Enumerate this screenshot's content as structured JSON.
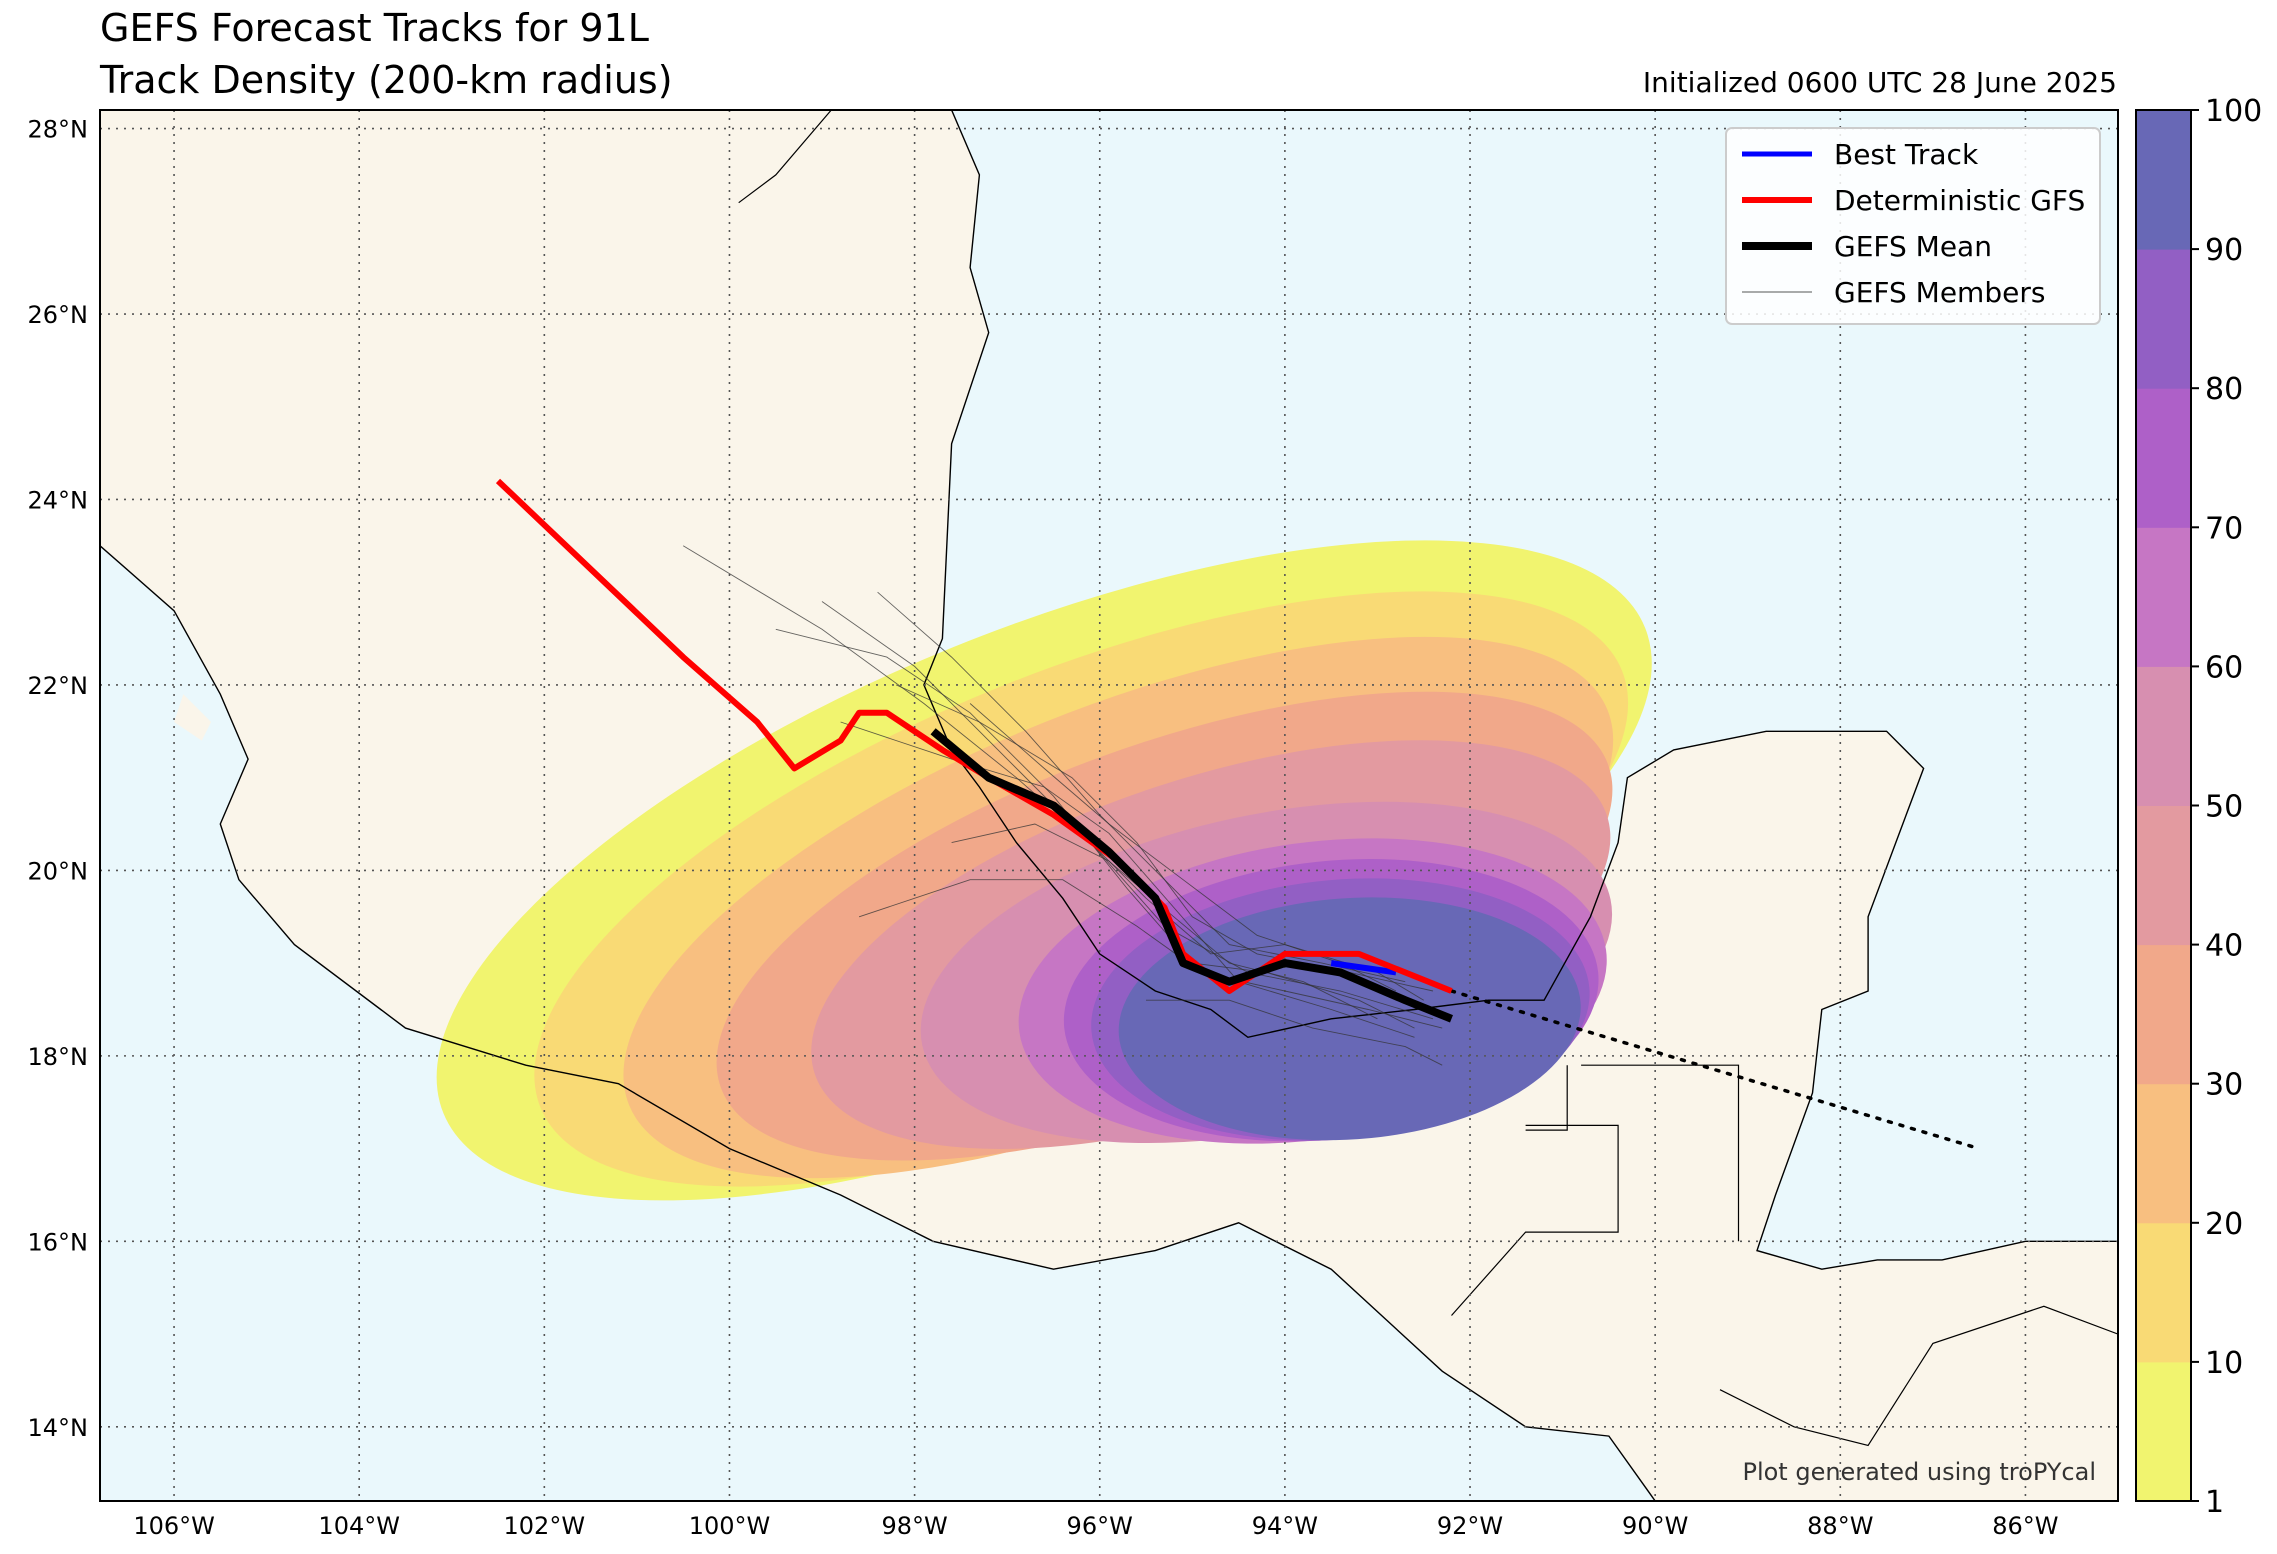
{
  "title_line1": "GEFS Forecast Tracks for 91L",
  "title_line2": "Track Density (200-km radius)",
  "initialized": "Initialized 0600 UTC 28 June 2025",
  "credit": "Plot generated using troPYcal",
  "lon_ticks": [
    "106°W",
    "104°W",
    "102°W",
    "100°W",
    "98°W",
    "96°W",
    "94°W",
    "92°W",
    "90°W",
    "88°W",
    "86°W"
  ],
  "lat_ticks": [
    "28°N",
    "26°N",
    "24°N",
    "22°N",
    "20°N",
    "18°N",
    "16°N",
    "14°N"
  ],
  "legend": [
    {
      "label": "Best Track",
      "color": "#0000ff"
    },
    {
      "label": "Deterministic GFS",
      "color": "#ff0000"
    },
    {
      "label": "GEFS Mean",
      "color": "#000000"
    },
    {
      "label": "GEFS Members",
      "color": "#555555"
    }
  ],
  "colorbar": {
    "ticks": [
      "1",
      "10",
      "20",
      "30",
      "40",
      "50",
      "60",
      "70",
      "80",
      "90",
      "100"
    ],
    "colors": [
      "#f1f46f",
      "#f9da75",
      "#f8bf80",
      "#f1a88a",
      "#e39aa0",
      "#d78fb0",
      "#c676c4",
      "#ae60c8",
      "#925fc4",
      "#6868b6"
    ]
  },
  "colors": {
    "ocean": "#eaf8fc",
    "land": "#faf5ea"
  },
  "chart_data": {
    "type": "map",
    "domain": {
      "lon": [
        -106.8,
        -85.0
      ],
      "lat": [
        13.2,
        28.2
      ]
    },
    "deterministic_gfs": [
      [
        -102.5,
        24.2
      ],
      [
        -100.5,
        22.3
      ],
      [
        -99.7,
        21.6
      ],
      [
        -99.3,
        21.1
      ],
      [
        -98.8,
        21.4
      ],
      [
        -98.6,
        21.7
      ],
      [
        -98.3,
        21.7
      ],
      [
        -97.7,
        21.3
      ],
      [
        -97.2,
        21.0
      ],
      [
        -96.5,
        20.6
      ],
      [
        -95.8,
        20.1
      ],
      [
        -95.3,
        19.6
      ],
      [
        -95.1,
        19.1
      ],
      [
        -94.6,
        18.7
      ],
      [
        -94.0,
        19.1
      ],
      [
        -93.2,
        19.1
      ],
      [
        -92.2,
        18.7
      ]
    ],
    "gefs_mean": [
      [
        -97.8,
        21.5
      ],
      [
        -97.2,
        21.0
      ],
      [
        -96.5,
        20.7
      ],
      [
        -95.9,
        20.2
      ],
      [
        -95.4,
        19.7
      ],
      [
        -95.1,
        19.0
      ],
      [
        -94.6,
        18.8
      ],
      [
        -94.0,
        19.0
      ],
      [
        -93.4,
        18.9
      ],
      [
        -92.7,
        18.6
      ],
      [
        -92.2,
        18.4
      ]
    ],
    "best_track": [
      [
        -93.5,
        19.0
      ],
      [
        -92.8,
        18.9
      ]
    ],
    "best_track_forecast_dotted": [
      [
        -92.2,
        18.7
      ],
      [
        -86.5,
        17.0
      ]
    ]
  }
}
